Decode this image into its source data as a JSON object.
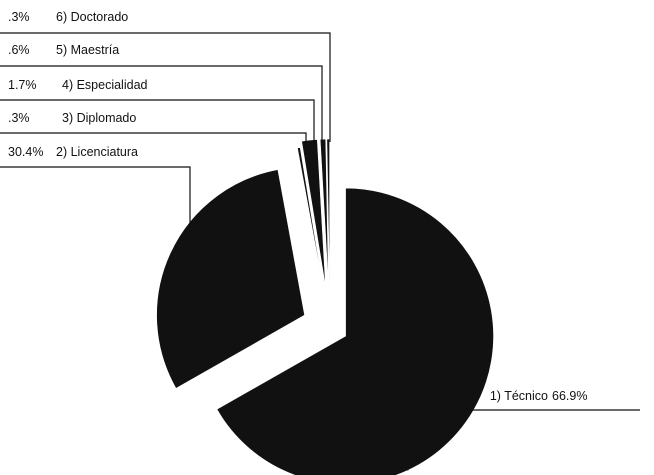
{
  "chart_data": {
    "type": "pie",
    "title": "",
    "exploded": true,
    "slice_color": "#111111",
    "background": "#ffffff",
    "slices": [
      {
        "key": "tecnico",
        "percent_label": "66.9%",
        "category_label": "1) Técnico",
        "value": 66.9
      },
      {
        "key": "licenciatura",
        "percent_label": "30.4%",
        "category_label": "2) Licenciatura",
        "value": 30.4
      },
      {
        "key": "diplomado",
        "percent_label": ".3%",
        "category_label": "3) Diplomado",
        "value": 0.3
      },
      {
        "key": "especialidad",
        "percent_label": "1.7%",
        "category_label": "4) Especialidad",
        "value": 1.7
      },
      {
        "key": "maestria",
        "percent_label": ".6%",
        "category_label": "5) Maestría",
        "value": 0.6
      },
      {
        "key": "doctorado",
        "percent_label": ".3%",
        "category_label": "6) Doctorado",
        "value": 0.3
      }
    ]
  }
}
